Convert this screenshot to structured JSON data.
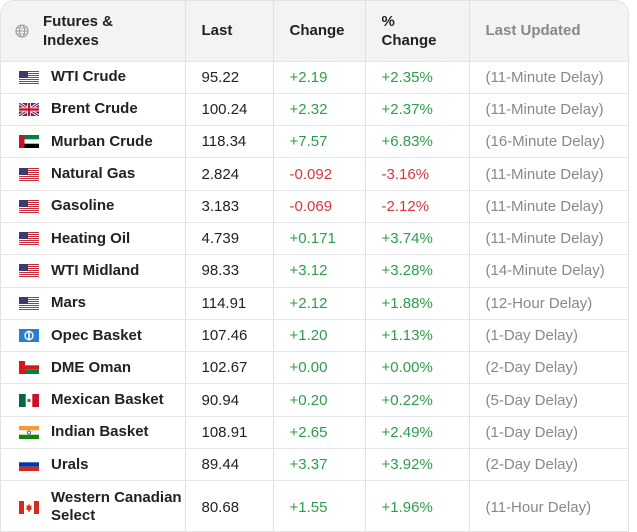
{
  "header": {
    "name": "Futures & Indexes",
    "last": "Last",
    "change": "Change",
    "pct_change": "% Change",
    "updated": "Last Updated"
  },
  "colors": {
    "positive": "#2e9e4a",
    "negative": "#d9363e"
  },
  "rows": [
    {
      "flag": "us-flag-icon",
      "name": "WTI Crude",
      "last": "95.22",
      "change": "+2.19",
      "pct": "+2.35%",
      "updated": "(11-Minute Delay)",
      "dir": "pos"
    },
    {
      "flag": "uk-flag-icon",
      "name": "Brent Crude",
      "last": "100.24",
      "change": "+2.32",
      "pct": "+2.37%",
      "updated": "(11-Minute Delay)",
      "dir": "pos"
    },
    {
      "flag": "uae-flag-icon",
      "name": "Murban Crude",
      "last": "118.34",
      "change": "+7.57",
      "pct": "+6.83%",
      "updated": "(16-Minute Delay)",
      "dir": "pos"
    },
    {
      "flag": "us-flag-icon",
      "name": "Natural Gas",
      "last": "2.824",
      "change": "-0.092",
      "pct": "-3.16%",
      "updated": "(11-Minute Delay)",
      "dir": "neg"
    },
    {
      "flag": "us-flag-icon",
      "name": "Gasoline",
      "last": "3.183",
      "change": "-0.069",
      "pct": "-2.12%",
      "updated": "(11-Minute Delay)",
      "dir": "neg"
    },
    {
      "flag": "us-flag-icon",
      "name": "Heating Oil",
      "last": "4.739",
      "change": "+0.171",
      "pct": "+3.74%",
      "updated": "(11-Minute Delay)",
      "dir": "pos"
    },
    {
      "flag": "us-flag-icon",
      "name": "WTI Midland",
      "last": "98.33",
      "change": "+3.12",
      "pct": "+3.28%",
      "updated": "(14-Minute Delay)",
      "dir": "pos"
    },
    {
      "flag": "us-flag-icon",
      "name": "Mars",
      "last": "114.91",
      "change": "+2.12",
      "pct": "+1.88%",
      "updated": "(12-Hour Delay)",
      "dir": "pos"
    },
    {
      "flag": "opec-flag-icon",
      "name": "Opec Basket",
      "last": "107.46",
      "change": "+1.20",
      "pct": "+1.13%",
      "updated": "(1-Day Delay)",
      "dir": "pos"
    },
    {
      "flag": "oman-flag-icon",
      "name": "DME Oman",
      "last": "102.67",
      "change": "+0.00",
      "pct": "+0.00%",
      "updated": "(2-Day Delay)",
      "dir": "pos"
    },
    {
      "flag": "mexico-flag-icon",
      "name": "Mexican Basket",
      "last": "90.94",
      "change": "+0.20",
      "pct": "+0.22%",
      "updated": "(5-Day Delay)",
      "dir": "pos"
    },
    {
      "flag": "india-flag-icon",
      "name": "Indian Basket",
      "last": "108.91",
      "change": "+2.65",
      "pct": "+2.49%",
      "updated": "(1-Day Delay)",
      "dir": "pos"
    },
    {
      "flag": "russia-flag-icon",
      "name": "Urals",
      "last": "89.44",
      "change": "+3.37",
      "pct": "+3.92%",
      "updated": "(2-Day Delay)",
      "dir": "pos"
    },
    {
      "flag": "canada-flag-icon",
      "name": "Western Canadian Select",
      "last": "80.68",
      "change": "+1.55",
      "pct": "+1.96%",
      "updated": "(11-Hour Delay)",
      "dir": "pos"
    }
  ]
}
